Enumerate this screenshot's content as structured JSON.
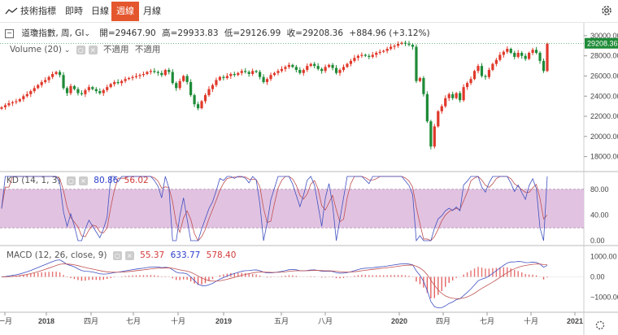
{
  "tabs": [
    {
      "label": "技術指標"
    },
    {
      "label": "即時"
    },
    {
      "label": "日線"
    },
    {
      "label": "週線",
      "active": true
    },
    {
      "label": "月線"
    }
  ],
  "header": {
    "title": "道瓊指數, 周, GI",
    "open_label": "開",
    "open": "29467.90",
    "high_label": "高",
    "high": "29933.83",
    "low_label": "低",
    "low": "29126.99",
    "close_label": "收",
    "close": "29208.36",
    "change": "+884.96",
    "change_pct": "(+3.12%)",
    "last_price": "29208.36"
  },
  "volume": {
    "label": "Volume (20)",
    "na1": "不適用",
    "na2": "不適用"
  },
  "kd": {
    "label": "KD (14, 1, 3)",
    "k": "80.86",
    "d": "56.02",
    "levels": [
      80,
      20
    ]
  },
  "macd": {
    "label": "MACD (12, 26, close, 9)",
    "v1": "55.37",
    "v2": "633.77",
    "v3": "578.40"
  },
  "axes": {
    "price_ticks": [
      "30000.00",
      "28000.00",
      "26000.00",
      "24000.00",
      "22000.00",
      "20000.00",
      "18000.00"
    ],
    "kd_ticks": [
      "80.00",
      "40.00",
      "0.00"
    ],
    "macd_ticks": [
      "1000.00",
      "0.00",
      "−1000.00"
    ],
    "x_ticks": [
      "一月",
      "2018",
      "四月",
      "七月",
      "十月",
      "2019",
      "五月",
      "八月",
      "2020",
      "四月",
      "七月",
      "十月",
      "2021"
    ]
  },
  "colors": {
    "up": "#e0392b",
    "down": "#1e8b37",
    "accent": "#e4572e",
    "kd_band": "#dcb9dc",
    "price_tag": "#1e8b37"
  },
  "chart_data": {
    "type": "candlestick",
    "series_weekly_close": [
      22900,
      23100,
      23300,
      23400,
      23500,
      23700,
      24000,
      24200,
      24500,
      24800,
      25100,
      25400,
      25600,
      25900,
      26200,
      26400,
      26100,
      24800,
      24300,
      25000,
      24700,
      24300,
      24200,
      24600,
      24900,
      24700,
      24500,
      24300,
      24600,
      24900,
      25200,
      25400,
      25300,
      25500,
      25700,
      25800,
      25900,
      26000,
      26100,
      26200,
      26400,
      26500,
      26400,
      26300,
      26100,
      26600,
      26400,
      25300,
      24800,
      25500,
      26000,
      25400,
      24100,
      23200,
      22800,
      23500,
      24100,
      24700,
      25100,
      25600,
      25900,
      25800,
      26000,
      26200,
      26100,
      26300,
      26500,
      26400,
      26200,
      26500,
      26400,
      25900,
      25400,
      25700,
      26100,
      26300,
      26500,
      26700,
      26900,
      27100,
      26900,
      26600,
      26300,
      26600,
      27000,
      27200,
      27000,
      26700,
      26500,
      26900,
      27100,
      26800,
      26300,
      26600,
      26900,
      27200,
      27500,
      27800,
      28000,
      28100,
      28000,
      27900,
      28100,
      28300,
      28400,
      28500,
      28700,
      28900,
      29000,
      29200,
      29300,
      29200,
      29100,
      28900,
      25500,
      25800,
      24200,
      21500,
      19000,
      21000,
      22500,
      23000,
      23800,
      24200,
      23800,
      24300,
      23600,
      24900,
      25300,
      25700,
      26500,
      27000,
      26000,
      25900,
      26600,
      27200,
      27600,
      28100,
      28400,
      28700,
      28300,
      27900,
      28300,
      28000,
      27700,
      28300,
      28600,
      28300,
      27500,
      26500,
      29200
    ]
  }
}
